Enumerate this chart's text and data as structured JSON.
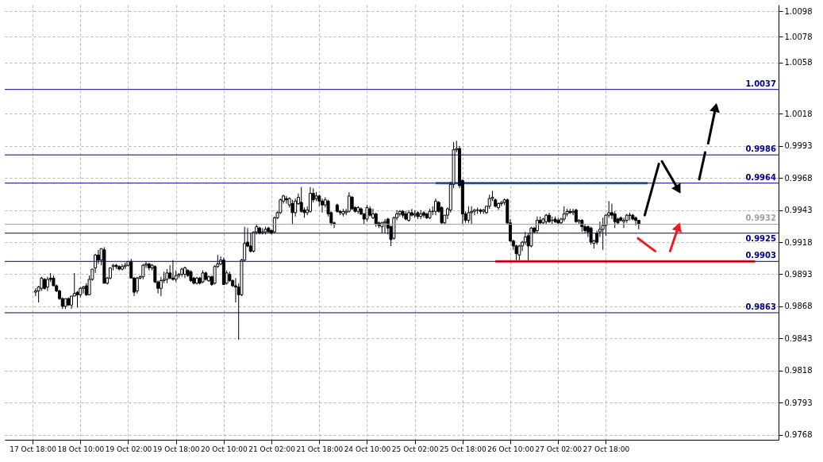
{
  "chart_data": {
    "type": "candlestick",
    "categories": [
      "17 Oct 18:00",
      null,
      null,
      null,
      null,
      null,
      null,
      null,
      null,
      null,
      null,
      null,
      null,
      null,
      null,
      null,
      "18 Oct 10:00",
      null,
      null,
      null,
      null,
      null,
      null,
      null,
      null,
      null,
      null,
      null,
      null,
      null,
      null,
      null,
      "19 Oct 02:00",
      null,
      null,
      null,
      null,
      null,
      null,
      null,
      null,
      null,
      null,
      null,
      null,
      null,
      null,
      null,
      "19 Oct 18:00",
      null,
      null,
      null,
      null,
      null,
      null,
      null,
      null,
      null,
      null,
      null,
      null,
      null,
      null,
      null,
      "20 Oct 10:00",
      null,
      null,
      null,
      null,
      null,
      null,
      null,
      null,
      null,
      null,
      null,
      null,
      null,
      null,
      null,
      "21 Oct 02:00",
      null,
      null,
      null,
      null,
      null,
      null,
      null,
      null,
      null,
      null,
      null,
      null,
      null,
      null,
      null,
      "21 Oct 18:00",
      null,
      null,
      null,
      null,
      null,
      null,
      null,
      null,
      null,
      null,
      null,
      null,
      null,
      null,
      null,
      "24 Oct 10:00",
      null,
      null,
      null,
      null,
      null,
      null,
      null,
      null,
      null,
      null,
      null,
      null,
      null,
      null,
      null,
      "25 Oct 02:00",
      null,
      null,
      null,
      null,
      null,
      null,
      null,
      null,
      null,
      null,
      null,
      null,
      null,
      null,
      null,
      "25 Oct 18:00",
      null,
      null,
      null,
      null,
      null,
      null,
      null,
      null,
      null,
      null,
      null,
      null,
      null,
      null,
      null,
      "26 Oct 10:00",
      null,
      null,
      null,
      null,
      null,
      null,
      null,
      null,
      null,
      null,
      null,
      null,
      null,
      null,
      null,
      "27 Oct 02:00",
      null,
      null,
      null,
      null,
      null,
      null,
      null,
      null,
      null,
      null,
      null,
      null,
      null,
      null,
      null,
      "27 Oct 18:00",
      null,
      null,
      null,
      null,
      null,
      null,
      null,
      null,
      null,
      null,
      null,
      null,
      null,
      null,
      null,
      null,
      null,
      null,
      null,
      null,
      null,
      null,
      null,
      null,
      null,
      null,
      null,
      null,
      null,
      null,
      null,
      null,
      null,
      null,
      null,
      null,
      null,
      null,
      null,
      null,
      null,
      null,
      null,
      null,
      null,
      null,
      null,
      null,
      null,
      null,
      null,
      null,
      null,
      null,
      null,
      null
    ],
    "ohlc": [
      null,
      [
        0.9879,
        0.9882,
        0.9876,
        0.988
      ],
      [
        0.988,
        0.9884,
        0.9871,
        0.9883
      ],
      [
        0.9882,
        0.9891,
        0.988,
        0.989
      ],
      [
        0.9889,
        0.989,
        0.9881,
        0.9882
      ],
      [
        0.9883,
        0.9891,
        0.988,
        0.9889
      ],
      [
        0.989,
        0.9894,
        0.9887,
        0.9889
      ],
      [
        0.989,
        0.9892,
        0.9884,
        0.9884
      ],
      [
        0.9884,
        0.9885,
        0.9879,
        0.988
      ],
      [
        0.988,
        0.9881,
        0.9873,
        0.9874
      ],
      [
        0.9874,
        0.9875,
        0.9866,
        0.9868
      ],
      [
        0.9868,
        0.9874,
        0.9866,
        0.9874
      ],
      [
        0.9874,
        0.9875,
        0.9869,
        0.9869
      ],
      [
        0.9869,
        0.9876,
        0.9866,
        0.9876
      ],
      [
        0.9876,
        0.9894,
        0.9876,
        0.9878
      ],
      [
        0.9879,
        0.988,
        0.9867,
        0.9877
      ],
      [
        0.9877,
        0.9883,
        0.9875,
        0.9882
      ],
      [
        0.9882,
        0.9884,
        0.9878,
        0.9883
      ],
      [
        0.9884,
        0.9886,
        0.9876,
        0.9877
      ],
      [
        0.9877,
        0.9892,
        0.9877,
        0.9889
      ],
      [
        0.9889,
        0.9897,
        0.9888,
        0.9897
      ],
      [
        0.9898,
        0.9909,
        0.9894,
        0.9908
      ],
      [
        0.9908,
        0.9912,
        0.9901,
        0.9904
      ],
      [
        0.9904,
        0.9913,
        0.99,
        0.9913
      ],
      [
        0.9912,
        0.9914,
        0.9886,
        0.9886
      ],
      [
        0.9886,
        0.9891,
        0.9885,
        0.989
      ],
      [
        0.989,
        0.9898,
        0.9889,
        0.9898
      ],
      [
        0.9899,
        0.9901,
        0.9896,
        0.99
      ],
      [
        0.99,
        0.9901,
        0.9897,
        0.9899
      ],
      [
        0.9899,
        0.99,
        0.9896,
        0.9897
      ],
      [
        0.9897,
        0.9901,
        0.9896,
        0.9899
      ],
      [
        0.9899,
        0.9902,
        0.9897,
        0.99
      ],
      [
        0.99,
        0.9903,
        0.9899,
        0.9903
      ],
      [
        0.9903,
        0.9905,
        0.989,
        0.989
      ],
      [
        0.989,
        0.9891,
        0.9876,
        0.9879
      ],
      [
        0.988,
        0.9891,
        0.9878,
        0.989
      ],
      [
        0.989,
        0.9892,
        0.9889,
        0.9891
      ],
      [
        0.9891,
        0.9901,
        0.9889,
        0.99
      ],
      [
        0.99,
        0.9903,
        0.9898,
        0.9901
      ],
      [
        0.9901,
        0.9902,
        0.9896,
        0.9898
      ],
      [
        0.9898,
        0.9901,
        0.9896,
        0.99
      ],
      [
        0.9899,
        0.99,
        0.9886,
        0.9887
      ],
      [
        0.9887,
        0.9888,
        0.9878,
        0.9882
      ],
      [
        0.9882,
        0.9891,
        0.9876,
        0.9888
      ],
      [
        0.9888,
        0.9895,
        0.9886,
        0.9889
      ],
      [
        0.9889,
        0.9897,
        0.9886,
        0.9894
      ],
      [
        0.9894,
        0.99,
        0.9889,
        0.989
      ],
      [
        0.989,
        0.9904,
        0.9888,
        0.9889
      ],
      [
        0.9889,
        0.9896,
        0.9887,
        0.9892
      ],
      [
        0.9892,
        0.9894,
        0.989,
        0.9893
      ],
      [
        0.9893,
        0.9898,
        0.9891,
        0.9897
      ],
      [
        0.9893,
        0.9899,
        0.989,
        0.9898
      ],
      [
        0.9896,
        0.9897,
        0.9891,
        0.9892
      ],
      [
        0.9895,
        0.9896,
        0.9887,
        0.9888
      ],
      [
        0.989,
        0.9891,
        0.9885,
        0.9886
      ],
      [
        0.9886,
        0.9891,
        0.9885,
        0.989
      ],
      [
        0.989,
        0.9891,
        0.9885,
        0.9886
      ],
      [
        0.9887,
        0.9896,
        0.9886,
        0.9894
      ],
      [
        0.9894,
        0.9895,
        0.9888,
        0.9889
      ],
      [
        0.9888,
        0.9892,
        0.9887,
        0.9891
      ],
      [
        0.9891,
        0.9892,
        0.9884,
        0.9885
      ],
      [
        0.9886,
        0.99,
        0.9885,
        0.9899
      ],
      [
        0.9899,
        0.9908,
        0.9898,
        0.9901
      ],
      [
        0.9901,
        0.9907,
        0.99,
        0.9904
      ],
      [
        0.9904,
        0.9906,
        0.9885,
        0.9885
      ],
      [
        0.9886,
        0.9896,
        0.9885,
        0.9894
      ],
      [
        0.9893,
        0.9895,
        0.9887,
        0.9888
      ],
      [
        0.9888,
        0.9889,
        0.9883,
        0.9884
      ],
      [
        0.9884,
        0.989,
        0.9871,
        0.9883
      ],
      [
        0.9883,
        0.9886,
        0.9842,
        0.9877
      ],
      [
        0.9877,
        0.9905,
        0.9876,
        0.9904
      ],
      [
        0.9904,
        0.993,
        0.9903,
        0.9917
      ],
      [
        0.9918,
        0.9929,
        0.9914,
        0.9915
      ],
      [
        0.9915,
        0.9925,
        0.991,
        0.9911
      ],
      [
        0.9911,
        0.9926,
        0.991,
        0.9926
      ],
      [
        0.9926,
        0.9932,
        0.9924,
        0.993
      ],
      [
        0.9929,
        0.993,
        0.9924,
        0.9925
      ],
      [
        0.9925,
        0.9929,
        0.9924,
        0.9926
      ],
      [
        0.9926,
        0.993,
        0.9924,
        0.9928
      ],
      [
        0.9929,
        0.993,
        0.9926,
        0.9926
      ],
      [
        0.9927,
        0.9928,
        0.9924,
        0.9925
      ],
      [
        0.9926,
        0.9938,
        0.9925,
        0.9937
      ],
      [
        0.9937,
        0.9942,
        0.9936,
        0.9941
      ],
      [
        0.9941,
        0.9952,
        0.994,
        0.9951
      ],
      [
        0.995,
        0.9955,
        0.9948,
        0.9954
      ],
      [
        0.9952,
        0.9954,
        0.9948,
        0.9951
      ],
      [
        0.9947,
        0.9953,
        0.9945,
        0.9952
      ],
      [
        0.9948,
        0.9951,
        0.9932,
        0.9941
      ],
      [
        0.9941,
        0.9952,
        0.9938,
        0.995
      ],
      [
        0.9948,
        0.9956,
        0.9947,
        0.9953
      ],
      [
        0.9949,
        0.9961,
        0.9941,
        0.9942
      ],
      [
        0.9943,
        0.9945,
        0.9937,
        0.9941
      ],
      [
        0.9941,
        0.9946,
        0.9939,
        0.9943
      ],
      [
        0.9942,
        0.9961,
        0.9941,
        0.9956
      ],
      [
        0.9956,
        0.996,
        0.9949,
        0.9951
      ],
      [
        0.9952,
        0.9957,
        0.995,
        0.9954
      ],
      [
        0.9954,
        0.9955,
        0.9946,
        0.995
      ],
      [
        0.995,
        0.9952,
        0.9941,
        0.9947
      ],
      [
        0.9947,
        0.9953,
        0.9945,
        0.9951
      ],
      [
        0.995,
        0.9951,
        0.9938,
        0.994
      ],
      [
        0.9941,
        0.9942,
        0.9931,
        0.9933
      ],
      [
        0.9933,
        0.9934,
        0.9929,
        0.9932
      ],
      [
        0.9947,
        0.9948,
        0.9941,
        0.9942
      ],
      [
        0.9942,
        0.9943,
        0.9939,
        0.9941
      ],
      [
        0.994,
        0.9944,
        0.9938,
        0.9942
      ],
      [
        0.9941,
        0.9944,
        0.9939,
        0.9942
      ],
      [
        0.9942,
        0.9957,
        0.9941,
        0.9954
      ],
      [
        0.9953,
        0.9954,
        0.9943,
        0.9944
      ],
      [
        0.9945,
        0.9946,
        0.9941,
        0.9942
      ],
      [
        0.9942,
        0.9946,
        0.994,
        0.9945
      ],
      [
        0.9944,
        0.9945,
        0.9939,
        0.994
      ],
      [
        0.994,
        0.9941,
        0.9932,
        0.9936
      ],
      [
        0.9936,
        0.9947,
        0.9934,
        0.9945
      ],
      [
        0.9944,
        0.9946,
        0.9938,
        0.9939
      ],
      [
        0.9937,
        0.9944,
        0.9936,
        0.994
      ],
      [
        0.994,
        0.9941,
        0.993,
        0.9932
      ],
      [
        0.9933,
        0.9934,
        0.9929,
        0.9931
      ],
      [
        0.993,
        0.9934,
        0.9925,
        0.9933
      ],
      [
        0.9933,
        0.9936,
        0.9925,
        0.9934
      ],
      [
        0.9936,
        0.9937,
        0.9924,
        0.9929
      ],
      [
        0.993,
        0.9931,
        0.9915,
        0.992
      ],
      [
        0.9921,
        0.9938,
        0.992,
        0.9937
      ],
      [
        0.9937,
        0.9943,
        0.9935,
        0.994
      ],
      [
        0.994,
        0.9943,
        0.9938,
        0.9942
      ],
      [
        0.9942,
        0.9943,
        0.9937,
        0.9939
      ],
      [
        0.994,
        0.9942,
        0.9935,
        0.9936
      ],
      [
        0.9935,
        0.9943,
        0.9934,
        0.9941
      ],
      [
        0.9941,
        0.9944,
        0.9938,
        0.9939
      ],
      [
        0.9939,
        0.9943,
        0.9937,
        0.994
      ],
      [
        0.9941,
        0.9942,
        0.9936,
        0.9938
      ],
      [
        0.9938,
        0.9943,
        0.9936,
        0.994
      ],
      [
        0.9941,
        0.9942,
        0.9937,
        0.9939
      ],
      [
        0.994,
        0.9941,
        0.9936,
        0.9937
      ],
      [
        0.9937,
        0.9944,
        0.9936,
        0.9942
      ],
      [
        0.9942,
        0.9946,
        0.9939,
        0.9942
      ],
      [
        0.9942,
        0.9952,
        0.9939,
        0.995
      ],
      [
        0.9949,
        0.995,
        0.9941,
        0.9942
      ],
      [
        0.9945,
        0.9946,
        0.9932,
        0.9933
      ],
      [
        0.9933,
        0.9939,
        0.9932,
        0.9939
      ],
      [
        0.9939,
        0.9945,
        0.9936,
        0.9944
      ],
      [
        0.9943,
        0.9965,
        0.9941,
        0.9963
      ],
      [
        0.9963,
        0.9996,
        0.996,
        0.999
      ],
      [
        0.999,
        0.9997,
        0.9988,
        0.9991
      ],
      [
        0.9991,
        0.9993,
        0.996,
        0.9962
      ],
      [
        0.9966,
        0.9967,
        0.9932,
        0.994
      ],
      [
        0.994,
        0.9942,
        0.9933,
        0.9935
      ],
      [
        0.9935,
        0.9946,
        0.9933,
        0.9941
      ],
      [
        0.9941,
        0.9946,
        0.9932,
        0.9942
      ],
      [
        0.9942,
        0.9944,
        0.9939,
        0.9943
      ],
      [
        0.9943,
        0.9945,
        0.994,
        0.9943
      ],
      [
        0.9943,
        0.9944,
        0.994,
        0.9942
      ],
      [
        0.9942,
        0.9944,
        0.994,
        0.9943
      ],
      [
        0.9941,
        0.9946,
        0.994,
        0.9946
      ],
      [
        0.9946,
        0.9955,
        0.9944,
        0.9952
      ],
      [
        0.9952,
        0.9958,
        0.995,
        0.9953
      ],
      [
        0.9951,
        0.9952,
        0.9945,
        0.9946
      ],
      [
        0.9945,
        0.9949,
        0.9943,
        0.9948
      ],
      [
        0.9948,
        0.995,
        0.9946,
        0.9949
      ],
      [
        0.9949,
        0.9952,
        0.9947,
        0.9951
      ],
      [
        0.9951,
        0.9952,
        0.9932,
        0.9933
      ],
      [
        0.9933,
        0.9936,
        0.9918,
        0.9919
      ],
      [
        0.9919,
        0.992,
        0.9912,
        0.9915
      ],
      [
        0.9915,
        0.9916,
        0.9904,
        0.9909
      ],
      [
        0.9908,
        0.9916,
        0.9904,
        0.9915
      ],
      [
        0.9915,
        0.9919,
        0.9911,
        0.9918
      ],
      [
        0.9918,
        0.9926,
        0.9916,
        0.9922
      ],
      [
        0.9923,
        0.9925,
        0.9904,
        0.9915
      ],
      [
        0.9915,
        0.993,
        0.9914,
        0.9929
      ],
      [
        0.9929,
        0.993,
        0.9925,
        0.9926
      ],
      [
        0.9927,
        0.9938,
        0.9925,
        0.9935
      ],
      [
        0.9935,
        0.9938,
        0.9932,
        0.9933
      ],
      [
        0.9933,
        0.9937,
        0.9932,
        0.9936
      ],
      [
        0.9934,
        0.994,
        0.9932,
        0.9939
      ],
      [
        0.9939,
        0.9941,
        0.9933,
        0.9934
      ],
      [
        0.9935,
        0.9938,
        0.9932,
        0.9935
      ],
      [
        0.9936,
        0.9938,
        0.9933,
        0.9934
      ],
      [
        0.9935,
        0.9937,
        0.9932,
        0.9933
      ],
      [
        0.9933,
        0.9937,
        0.9932,
        0.9936
      ],
      [
        0.9936,
        0.9946,
        0.9934,
        0.994
      ],
      [
        0.994,
        0.9944,
        0.9938,
        0.9942
      ],
      [
        0.9942,
        0.9944,
        0.994,
        0.9941
      ],
      [
        0.9941,
        0.9944,
        0.9939,
        0.9942
      ],
      [
        0.9943,
        0.9944,
        0.9933,
        0.9934
      ],
      [
        0.9934,
        0.9936,
        0.9932,
        0.9935
      ],
      [
        0.9935,
        0.9936,
        0.9926,
        0.993
      ],
      [
        0.993,
        0.9932,
        0.9925,
        0.9927
      ],
      [
        0.993,
        0.9931,
        0.9922,
        0.9926
      ],
      [
        0.9929,
        0.993,
        0.9916,
        0.9918
      ],
      [
        0.9917,
        0.992,
        0.9913,
        0.9919
      ],
      [
        0.9925,
        0.9927,
        0.9916,
        0.9918
      ],
      [
        0.9926,
        0.9934,
        0.9922,
        0.9928
      ],
      [
        0.9928,
        0.9937,
        0.9912,
        0.9931
      ],
      [
        0.9931,
        0.994,
        0.9923,
        0.9939
      ],
      [
        0.9939,
        0.995,
        0.9937,
        0.9941
      ],
      [
        0.9941,
        0.9948,
        0.9936,
        0.9939
      ],
      [
        0.994,
        0.9942,
        0.9929,
        0.9934
      ],
      [
        0.9936,
        0.9937,
        0.9932,
        0.9933
      ],
      [
        0.9937,
        0.9938,
        0.9934,
        0.9935
      ],
      [
        0.9934,
        0.9937,
        0.9929,
        0.9935
      ],
      [
        0.9935,
        0.994,
        0.9933,
        0.9939
      ],
      [
        0.9939,
        0.9941,
        0.9935,
        0.9939
      ],
      [
        0.9939,
        0.994,
        0.9935,
        0.9936
      ],
      [
        0.9937,
        0.9938,
        0.9931,
        0.9935
      ],
      [
        0.9935,
        0.9935,
        0.9928,
        0.9932
      ],
      null,
      null,
      null,
      null,
      null,
      null,
      null,
      null,
      null,
      null,
      null,
      null,
      null,
      null,
      null,
      null,
      null,
      null,
      null,
      null,
      null,
      null,
      null,
      null,
      null,
      null,
      null,
      null,
      null,
      null,
      null,
      null,
      null,
      null,
      null,
      null,
      null,
      null,
      null,
      null,
      null,
      null,
      null,
      null,
      null
    ],
    "ylim": [
      0.9764,
      1.0103
    ],
    "yticks": [
      0.9768,
      0.9793,
      0.9818,
      0.9843,
      0.9868,
      0.9893,
      0.9918,
      0.9943,
      0.9968,
      0.9993,
      1.0018,
      1.0058,
      1.0078,
      1.0098
    ],
    "grid": true,
    "ref_lines": [
      {
        "axis": "y",
        "value": 1.0037,
        "label": "1.0037",
        "color": "#000080"
      },
      {
        "axis": "y",
        "value": 0.9986,
        "label": "0.9986",
        "color": "#000080"
      },
      {
        "axis": "y",
        "value": 0.9964,
        "label": "0.9964",
        "color": "#000080"
      },
      {
        "axis": "y",
        "value": 0.9932,
        "label": "0.9932",
        "color": "#a0a0a0"
      },
      {
        "axis": "y",
        "value": 0.9925,
        "label": "0.9925",
        "color": "#000080"
      },
      {
        "axis": "y",
        "value": 0.9903,
        "label": "0.9903",
        "color": "#000080"
      },
      {
        "axis": "y",
        "value": 0.9863,
        "label": "0.9863",
        "color": "#000080"
      }
    ],
    "series": [
      {
        "type": "line",
        "color": "#22b14c",
        "values": [
          null,
          null,
          null,
          null,
          null,
          null,
          null,
          null,
          null,
          null,
          null,
          null,
          null,
          null,
          null,
          null,
          null,
          null,
          null,
          null,
          null,
          null,
          null,
          null,
          null,
          null,
          null,
          null,
          null,
          null,
          null,
          null,
          null,
          null,
          null,
          null,
          null,
          null,
          null,
          null,
          null,
          null,
          null,
          null,
          null,
          null,
          null,
          null,
          null,
          null,
          null,
          null,
          null,
          null,
          null,
          null,
          null,
          null,
          null,
          null,
          null,
          null,
          null,
          null,
          null,
          null,
          null,
          null,
          null,
          null,
          null,
          null,
          null,
          null,
          null,
          null,
          null,
          null,
          null,
          null,
          null,
          null,
          null,
          null,
          null,
          null,
          null,
          null,
          null,
          null,
          null,
          null,
          null,
          null,
          null,
          null,
          null,
          null,
          null,
          null,
          null,
          null,
          null,
          null,
          null,
          null,
          null,
          null,
          null,
          null,
          null,
          null,
          null,
          null,
          null,
          null,
          null,
          null,
          null,
          null,
          null,
          null,
          null,
          null,
          null,
          null,
          null,
          null,
          null,
          null,
          null,
          null,
          null,
          null,
          null,
          0.9964,
          0.9964,
          0.9964,
          0.9964,
          0.9964,
          0.9964,
          0.9964,
          0.9964,
          0.9964,
          0.9964,
          0.9964,
          0.9964,
          0.9964,
          0.9964,
          0.9964,
          0.9964,
          0.9964,
          0.9964,
          0.9964,
          0.9964,
          0.9964,
          0.9964,
          0.9964,
          0.9964,
          0.9964,
          0.9964,
          0.9964,
          0.9964,
          0.9964,
          0.9964,
          0.9964,
          0.9964,
          0.9964,
          0.9964,
          0.9964,
          0.9964,
          0.9964,
          0.9964,
          0.9964,
          0.9964,
          0.9964,
          0.9964,
          0.9964,
          0.9964,
          0.9964,
          0.9964,
          0.9964,
          0.9964,
          0.9964,
          0.9964,
          0.9964,
          0.9964,
          0.9964,
          0.9964,
          0.9964,
          0.9964,
          0.9964,
          0.9964,
          0.9964,
          0.9964,
          0.9964,
          0.9964,
          0.9964,
          0.9964,
          0.9964,
          0.9964,
          0.9964,
          0.9964,
          0.9964,
          0.9964,
          0.9964,
          0.9964,
          null,
          null,
          null,
          null,
          null,
          null,
          null,
          null,
          null,
          null,
          null,
          null,
          null,
          null,
          null,
          null,
          null,
          null,
          null,
          null,
          null,
          null,
          null,
          null,
          null,
          null,
          null,
          null,
          null,
          null,
          null,
          null,
          null,
          null,
          null,
          null,
          null,
          null,
          null,
          null,
          null,
          null
        ]
      },
      {
        "type": "line",
        "color": "#ed1c24",
        "values": [
          null,
          null,
          null,
          null,
          null,
          null,
          null,
          null,
          null,
          null,
          null,
          null,
          null,
          null,
          null,
          null,
          null,
          null,
          null,
          null,
          null,
          null,
          null,
          null,
          null,
          null,
          null,
          null,
          null,
          null,
          null,
          null,
          null,
          null,
          null,
          null,
          null,
          null,
          null,
          null,
          null,
          null,
          null,
          null,
          null,
          null,
          null,
          null,
          null,
          null,
          null,
          null,
          null,
          null,
          null,
          null,
          null,
          null,
          null,
          null,
          null,
          null,
          null,
          null,
          null,
          null,
          null,
          null,
          null,
          null,
          null,
          null,
          null,
          null,
          null,
          null,
          null,
          null,
          null,
          null,
          null,
          null,
          null,
          null,
          null,
          null,
          null,
          null,
          null,
          null,
          null,
          null,
          null,
          null,
          null,
          null,
          null,
          null,
          null,
          null,
          null,
          null,
          null,
          null,
          null,
          null,
          null,
          null,
          null,
          null,
          null,
          null,
          null,
          null,
          null,
          null,
          null,
          null,
          null,
          null,
          null,
          null,
          null,
          null,
          null,
          null,
          null,
          null,
          null,
          null,
          null,
          null,
          null,
          null,
          null,
          null,
          null,
          null,
          null,
          null,
          null,
          null,
          null,
          null,
          null,
          null,
          null,
          null,
          null,
          null,
          null,
          null,
          null,
          null,
          null,
          0.9903,
          0.9903,
          0.9903,
          0.9903,
          0.9903,
          0.9903,
          0.9903,
          0.9903,
          0.9903,
          0.9903,
          0.9903,
          0.9903,
          0.9903,
          0.9903,
          0.9903,
          0.9903,
          0.9903,
          0.9903,
          0.9903,
          0.9903,
          0.9903,
          0.9903,
          0.9903,
          0.9903,
          0.9903,
          0.9903,
          0.9903,
          0.9903,
          0.9903,
          0.9903,
          0.9903,
          0.9903,
          0.9903,
          0.9903,
          0.9903,
          0.9903,
          0.9903,
          0.9903,
          0.9903,
          0.9903,
          0.9903,
          0.9903,
          0.9903,
          0.9903,
          0.9903,
          0.9903,
          0.9903,
          0.9903,
          0.9903,
          0.9903,
          0.9903,
          0.9903,
          0.9903,
          0.9903,
          0.9903,
          0.9903,
          0.9903,
          0.9903,
          0.9903,
          0.9903,
          0.9903,
          0.9903,
          0.9903,
          0.9903,
          0.9903,
          0.9903,
          0.9903,
          0.9903,
          0.9903,
          0.9903,
          0.9903,
          0.9903,
          0.9903,
          0.9903,
          0.9903,
          0.9903,
          0.9903,
          0.9903,
          0.9903,
          0.9903,
          0.9903,
          0.9903,
          0.9903,
          0.9903,
          0.9903,
          0.9903,
          0.9903,
          0.9903,
          null,
          null,
          null,
          null,
          null,
          null
        ]
      }
    ]
  }
}
